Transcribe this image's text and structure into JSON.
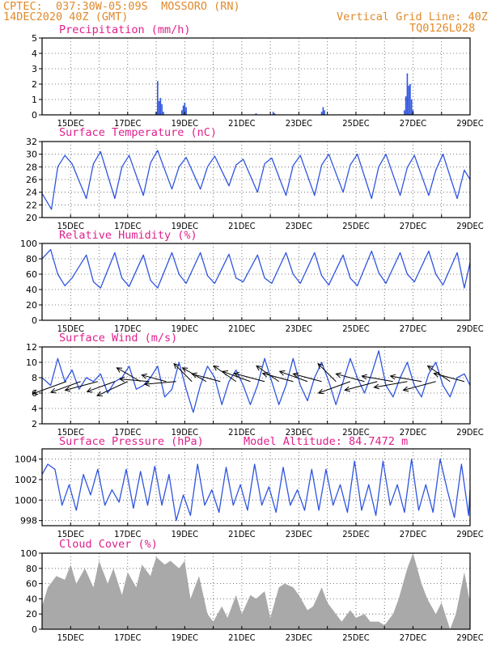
{
  "header": {
    "left_line1": "CPTEC:  037:30W-05:09S  MOSSORO (RN)",
    "left_line2": "14DEC2020 40Z (GMT)",
    "right_line1": "Vertical Grid Line: 40Z",
    "right_line2": "TQ0126L028"
  },
  "colors": {
    "header_text": "#e08a2b",
    "panel_title": "#e0208c",
    "series_line": "#2f55e0",
    "cloud_fill": "#a9a9a9",
    "wind_vector": "#000000"
  },
  "chart_data": [
    {
      "type": "bar",
      "title": "Precipitation (mm/h)",
      "xlim_days": [
        14,
        29
      ],
      "ylim": [
        0,
        5
      ],
      "yticks": [
        0,
        1,
        2,
        3,
        4,
        5
      ],
      "xticks": [
        "15DEC",
        "17DEC",
        "19DEC",
        "21DEC",
        "23DEC",
        "25DEC",
        "27DEC",
        "29DEC"
      ],
      "x_day": [
        18.0,
        18.05,
        18.1,
        18.15,
        18.2,
        18.25,
        18.9,
        18.95,
        19.0,
        19.05,
        21.5,
        22.1,
        22.15,
        23.8,
        23.85,
        23.9,
        26.7,
        26.75,
        26.8,
        26.85,
        26.9,
        26.95,
        27.0
      ],
      "values": [
        0.2,
        2.2,
        0.9,
        1.1,
        0.7,
        0.2,
        0.3,
        0.6,
        0.8,
        0.5,
        0.1,
        0.2,
        0.1,
        0.2,
        0.5,
        0.3,
        0.3,
        1.2,
        2.7,
        1.9,
        2.0,
        1.0,
        0.3
      ]
    },
    {
      "type": "line",
      "title": "Surface Temperature (nC)",
      "xlim_days": [
        14,
        29
      ],
      "ylim": [
        20,
        32
      ],
      "yticks": [
        20,
        22,
        24,
        26,
        28,
        30,
        32
      ],
      "xticks": [
        "15DEC",
        "17DEC",
        "19DEC",
        "21DEC",
        "23DEC",
        "25DEC",
        "27DEC",
        "29DEC"
      ],
      "x_day": [
        14.0,
        14.33,
        14.55,
        14.8,
        15.05,
        15.55,
        15.8,
        16.05,
        16.55,
        16.8,
        17.05,
        17.55,
        17.8,
        18.05,
        18.55,
        18.8,
        19.05,
        19.55,
        19.8,
        20.05,
        20.55,
        20.8,
        21.05,
        21.55,
        21.8,
        22.05,
        22.55,
        22.8,
        23.05,
        23.55,
        23.8,
        24.05,
        24.55,
        24.8,
        25.05,
        25.55,
        25.8,
        26.05,
        26.55,
        26.8,
        27.05,
        27.55,
        27.8,
        28.05,
        28.55,
        28.8,
        29.0
      ],
      "values": [
        23.8,
        21.3,
        28.0,
        29.8,
        28.5,
        23.0,
        28.5,
        30.4,
        23.0,
        28.0,
        29.8,
        23.5,
        28.6,
        30.6,
        24.5,
        28.0,
        29.5,
        24.5,
        28.0,
        29.7,
        25.0,
        28.3,
        29.2,
        24.0,
        28.5,
        29.4,
        23.5,
        28.2,
        29.8,
        23.5,
        28.3,
        30.0,
        24.0,
        28.3,
        30.0,
        23.0,
        28.0,
        30.0,
        23.5,
        27.9,
        29.8,
        23.5,
        27.5,
        30.0,
        23.0,
        27.5,
        26.0
      ]
    },
    {
      "type": "line",
      "title": "Relative Humidity (%)",
      "xlim_days": [
        14,
        29
      ],
      "ylim": [
        0,
        100
      ],
      "yticks": [
        0,
        20,
        40,
        60,
        80,
        100
      ],
      "xticks": [
        "15DEC",
        "17DEC",
        "19DEC",
        "21DEC",
        "23DEC",
        "25DEC",
        "27DEC",
        "29DEC"
      ],
      "x_day": [
        14.0,
        14.3,
        14.55,
        14.8,
        15.05,
        15.55,
        15.8,
        16.05,
        16.55,
        16.8,
        17.05,
        17.55,
        17.8,
        18.05,
        18.55,
        18.8,
        19.05,
        19.55,
        19.8,
        20.05,
        20.55,
        20.8,
        21.05,
        21.55,
        21.8,
        22.05,
        22.55,
        22.8,
        23.05,
        23.55,
        23.8,
        24.05,
        24.55,
        24.8,
        25.05,
        25.55,
        25.8,
        26.05,
        26.55,
        26.8,
        27.05,
        27.55,
        27.8,
        28.05,
        28.55,
        28.8,
        29.0
      ],
      "values": [
        80,
        92,
        60,
        45,
        55,
        85,
        50,
        42,
        88,
        55,
        44,
        85,
        52,
        42,
        88,
        60,
        48,
        88,
        58,
        48,
        86,
        55,
        50,
        85,
        55,
        48,
        88,
        60,
        48,
        88,
        58,
        46,
        85,
        55,
        45,
        90,
        62,
        48,
        88,
        60,
        50,
        90,
        60,
        46,
        88,
        42,
        75
      ]
    },
    {
      "type": "line",
      "title": "Surface Wind (m/s)",
      "xlim_days": [
        14,
        29
      ],
      "ylim": [
        2,
        12
      ],
      "yticks": [
        2,
        4,
        6,
        8,
        10,
        12
      ],
      "xticks": [
        "15DEC",
        "17DEC",
        "19DEC",
        "21DEC",
        "23DEC",
        "25DEC",
        "27DEC",
        "29DEC"
      ],
      "x_day": [
        14.0,
        14.3,
        14.55,
        14.8,
        15.05,
        15.3,
        15.55,
        15.8,
        16.05,
        16.3,
        16.55,
        16.8,
        17.05,
        17.3,
        17.55,
        17.8,
        18.05,
        18.3,
        18.55,
        18.8,
        19.05,
        19.3,
        19.55,
        19.8,
        20.05,
        20.3,
        20.55,
        20.8,
        21.05,
        21.3,
        21.55,
        21.8,
        22.05,
        22.3,
        22.55,
        22.8,
        23.05,
        23.3,
        23.55,
        23.8,
        24.05,
        24.3,
        24.55,
        24.8,
        25.05,
        25.3,
        25.55,
        25.8,
        26.05,
        26.3,
        26.55,
        26.8,
        27.05,
        27.3,
        27.55,
        27.8,
        28.05,
        28.3,
        28.55,
        28.8,
        29.0
      ],
      "values": [
        8.0,
        7.0,
        10.5,
        7.5,
        9.0,
        6.5,
        8.0,
        7.5,
        8.5,
        6.0,
        7.5,
        8.0,
        9.5,
        6.5,
        7.0,
        8.0,
        9.5,
        5.5,
        6.5,
        10.0,
        6.5,
        3.5,
        7.0,
        9.5,
        8.0,
        4.5,
        7.5,
        9.0,
        7.0,
        4.5,
        7.0,
        10.5,
        7.5,
        4.5,
        7.0,
        10.5,
        7.0,
        5.0,
        8.0,
        10.0,
        7.5,
        4.5,
        7.5,
        10.5,
        8.0,
        6.0,
        8.5,
        11.5,
        7.0,
        5.5,
        8.0,
        10.0,
        7.0,
        5.5,
        8.5,
        10.0,
        7.0,
        5.5,
        8.0,
        8.5,
        7.0
      ],
      "vectors": [
        {
          "x_day": 14.85,
          "speed": 8.5,
          "dir_deg": 200
        },
        {
          "x_day": 15.35,
          "speed": 7.5,
          "dir_deg": 200
        },
        {
          "x_day": 15.95,
          "speed": 8.0,
          "dir_deg": 195
        },
        {
          "x_day": 16.55,
          "speed": 7.0,
          "dir_deg": 200
        },
        {
          "x_day": 17.0,
          "speed": 8.0,
          "dir_deg": 205
        },
        {
          "x_day": 17.45,
          "speed": 6.5,
          "dir_deg": 150
        },
        {
          "x_day": 17.75,
          "speed": 7.0,
          "dir_deg": 175
        },
        {
          "x_day": 18.35,
          "speed": 6.0,
          "dir_deg": 165
        },
        {
          "x_day": 18.7,
          "speed": 7.5,
          "dir_deg": 185
        },
        {
          "x_day": 19.25,
          "speed": 6.0,
          "dir_deg": 135
        },
        {
          "x_day": 19.75,
          "speed": 6.5,
          "dir_deg": 150
        },
        {
          "x_day": 20.25,
          "speed": 7.0,
          "dir_deg": 165
        },
        {
          "x_day": 20.8,
          "speed": 6.5,
          "dir_deg": 145
        },
        {
          "x_day": 21.3,
          "speed": 7.0,
          "dir_deg": 160
        },
        {
          "x_day": 21.8,
          "speed": 7.5,
          "dir_deg": 165
        },
        {
          "x_day": 22.3,
          "speed": 6.5,
          "dir_deg": 145
        },
        {
          "x_day": 22.8,
          "speed": 7.5,
          "dir_deg": 165
        },
        {
          "x_day": 23.3,
          "speed": 7.0,
          "dir_deg": 160
        },
        {
          "x_day": 23.8,
          "speed": 7.0,
          "dir_deg": 165
        },
        {
          "x_day": 24.3,
          "speed": 6.0,
          "dir_deg": 135
        },
        {
          "x_day": 24.8,
          "speed": 8.0,
          "dir_deg": 200
        },
        {
          "x_day": 25.3,
          "speed": 7.0,
          "dir_deg": 165
        },
        {
          "x_day": 25.75,
          "speed": 8.0,
          "dir_deg": 195
        },
        {
          "x_day": 26.3,
          "speed": 7.5,
          "dir_deg": 170
        },
        {
          "x_day": 26.8,
          "speed": 8.0,
          "dir_deg": 190
        },
        {
          "x_day": 27.3,
          "speed": 7.5,
          "dir_deg": 170
        },
        {
          "x_day": 27.8,
          "speed": 8.0,
          "dir_deg": 195
        },
        {
          "x_day": 28.3,
          "speed": 6.5,
          "dir_deg": 145
        },
        {
          "x_day": 28.8,
          "speed": 7.5,
          "dir_deg": 165
        }
      ]
    },
    {
      "type": "line",
      "title": "Surface Pressure (hPa)",
      "annotation": "Model Altitude: 84.7472 m",
      "xlim_days": [
        14,
        29
      ],
      "ylim": [
        997.5,
        1005
      ],
      "yticks": [
        998,
        1000,
        1002,
        1004
      ],
      "xticks": [
        "15DEC",
        "17DEC",
        "19DEC",
        "21DEC",
        "23DEC",
        "25DEC",
        "27DEC",
        "29DEC"
      ],
      "x_day": [
        14.0,
        14.2,
        14.45,
        14.7,
        14.95,
        15.2,
        15.45,
        15.7,
        15.95,
        16.2,
        16.45,
        16.7,
        16.95,
        17.2,
        17.45,
        17.7,
        17.95,
        18.2,
        18.45,
        18.7,
        18.95,
        19.2,
        19.45,
        19.7,
        19.95,
        20.2,
        20.45,
        20.7,
        20.95,
        21.2,
        21.45,
        21.7,
        21.95,
        22.2,
        22.45,
        22.7,
        22.95,
        23.2,
        23.45,
        23.7,
        23.95,
        24.2,
        24.45,
        24.7,
        24.95,
        25.2,
        25.45,
        25.7,
        25.95,
        26.2,
        26.45,
        26.7,
        26.95,
        27.2,
        27.45,
        27.7,
        27.95,
        28.2,
        28.45,
        28.7,
        28.95,
        29.0
      ],
      "values": [
        1002.5,
        1003.5,
        1003.0,
        999.5,
        1001.5,
        999.0,
        1002.5,
        1000.5,
        1003.0,
        999.5,
        1001.0,
        999.8,
        1003.0,
        999.2,
        1002.8,
        999.5,
        1003.3,
        999.5,
        1002.5,
        998.0,
        1000.5,
        998.5,
        1003.5,
        999.5,
        1001.0,
        998.8,
        1003.2,
        999.5,
        1001.5,
        999.0,
        1003.5,
        999.5,
        1001.3,
        998.8,
        1003.2,
        999.5,
        1001.0,
        999.0,
        1003.0,
        999.0,
        1003.0,
        999.5,
        1001.5,
        998.8,
        1003.8,
        999.0,
        1001.5,
        998.5,
        1003.8,
        999.5,
        1001.5,
        998.8,
        1004.0,
        999.0,
        1001.5,
        998.8,
        1004.0,
        1001.0,
        998.3,
        1003.5,
        998.5,
        1001.0
      ]
    },
    {
      "type": "area",
      "title": "Cloud Cover (%)",
      "xlim_days": [
        14,
        29
      ],
      "ylim": [
        0,
        100
      ],
      "yticks": [
        0,
        20,
        40,
        60,
        80,
        100
      ],
      "xticks": [
        "15DEC",
        "17DEC",
        "19DEC",
        "21DEC",
        "23DEC",
        "25DEC",
        "27DEC",
        "29DEC"
      ],
      "x_day": [
        14.0,
        14.2,
        14.5,
        14.8,
        15.0,
        15.2,
        15.5,
        15.8,
        16.0,
        16.3,
        16.5,
        16.8,
        17.0,
        17.3,
        17.5,
        17.8,
        18.0,
        18.3,
        18.5,
        18.8,
        19.0,
        19.2,
        19.5,
        19.8,
        20.0,
        20.3,
        20.5,
        20.8,
        21.0,
        21.3,
        21.5,
        21.8,
        22.0,
        22.3,
        22.5,
        22.8,
        23.0,
        23.3,
        23.5,
        23.8,
        24.0,
        24.3,
        24.5,
        24.8,
        25.0,
        25.3,
        25.5,
        25.8,
        26.0,
        26.3,
        26.5,
        26.8,
        27.0,
        27.3,
        27.5,
        27.8,
        28.0,
        28.3,
        28.5,
        28.8,
        29.0
      ],
      "values": [
        30,
        55,
        70,
        65,
        85,
        60,
        80,
        55,
        90,
        60,
        80,
        45,
        75,
        55,
        85,
        70,
        95,
        85,
        90,
        80,
        90,
        40,
        70,
        20,
        10,
        30,
        15,
        45,
        20,
        45,
        40,
        50,
        15,
        55,
        60,
        55,
        45,
        25,
        30,
        55,
        35,
        20,
        10,
        25,
        15,
        20,
        10,
        10,
        5,
        20,
        40,
        80,
        100,
        60,
        40,
        20,
        35,
        0,
        20,
        75,
        35
      ]
    }
  ]
}
